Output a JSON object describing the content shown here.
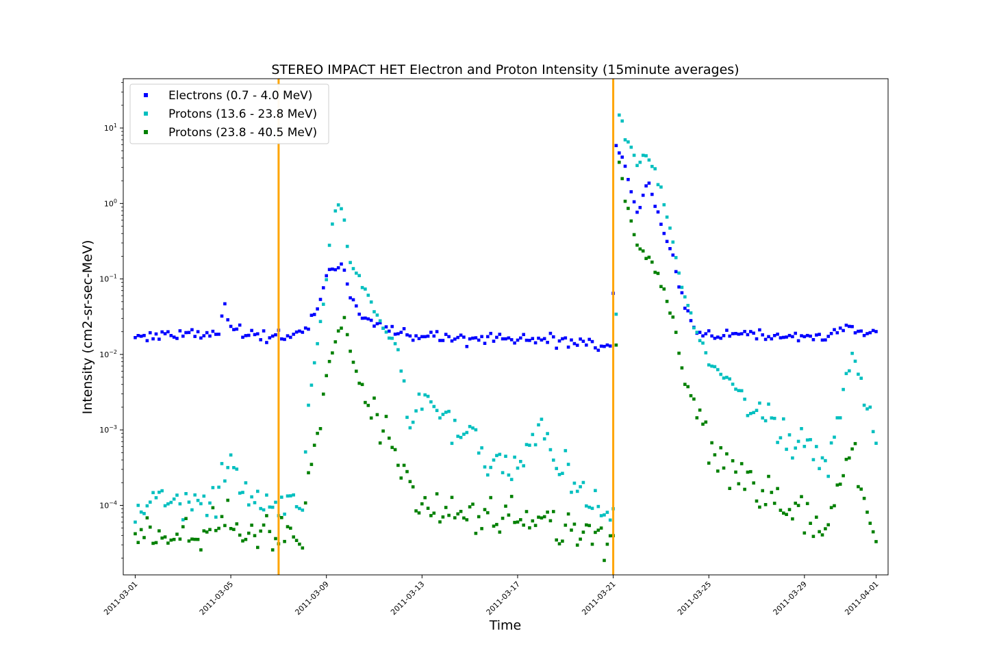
{
  "chart_data": {
    "type": "scatter",
    "title": "STEREO IMPACT HET Electron and Proton Intensity (15minute averages)",
    "xlabel": "Time",
    "ylabel": "Intensity (cm2-sr-sec-MeV)",
    "xlim": [
      "2011-02-28T12:00",
      "2011-04-01T12:00"
    ],
    "ylim": [
      1.2e-05,
      45
    ],
    "yscale": "log",
    "x_ticks": [
      "2011-03-01",
      "2011-03-05",
      "2011-03-09",
      "2011-03-13",
      "2011-03-17",
      "2011-03-21",
      "2011-03-25",
      "2011-03-29",
      "2011-04-01"
    ],
    "y_ticks": [
      {
        "value": 0.0001,
        "base": "10",
        "exp": "−4"
      },
      {
        "value": 0.001,
        "base": "10",
        "exp": "−3"
      },
      {
        "value": 0.01,
        "base": "10",
        "exp": "−2"
      },
      {
        "value": 0.1,
        "base": "10",
        "exp": "−1"
      },
      {
        "value": 1,
        "base": "10",
        "exp": "0"
      },
      {
        "value": 10,
        "base": "10",
        "exp": "1"
      }
    ],
    "vlines": [
      {
        "x": "2011-03-07T00:00",
        "color": "#ffa500"
      },
      {
        "x": "2011-03-21T00:00",
        "color": "#ffa500"
      }
    ],
    "legend_position": "upper-left",
    "series": [
      {
        "name": "Electrons (0.7 - 4.0 MeV)",
        "color": "#0000ff",
        "points": [
          [
            "2011-03-01T00:00",
            0.018
          ],
          [
            "2011-03-02T00:00",
            0.018
          ],
          [
            "2011-03-03T00:00",
            0.018
          ],
          [
            "2011-03-04T00:00",
            0.018
          ],
          [
            "2011-03-04T12:00",
            0.018
          ],
          [
            "2011-03-04T18:00",
            0.045
          ],
          [
            "2011-03-05T00:00",
            0.022
          ],
          [
            "2011-03-06T00:00",
            0.019
          ],
          [
            "2011-03-07T00:00",
            0.019
          ],
          [
            "2011-03-08T00:00",
            0.02
          ],
          [
            "2011-03-08T06:00",
            0.025
          ],
          [
            "2011-03-08T18:00",
            0.05
          ],
          [
            "2011-03-09T00:00",
            0.1
          ],
          [
            "2011-03-09T12:00",
            0.15
          ],
          [
            "2011-03-09T18:00",
            0.15
          ],
          [
            "2011-03-10T00:00",
            0.06
          ],
          [
            "2011-03-10T12:00",
            0.03
          ],
          [
            "2011-03-11T00:00",
            0.025
          ],
          [
            "2011-03-11T12:00",
            0.022
          ],
          [
            "2011-03-12T00:00",
            0.02
          ],
          [
            "2011-03-13T00:00",
            0.017
          ],
          [
            "2011-03-15T00:00",
            0.016
          ],
          [
            "2011-03-17T00:00",
            0.016
          ],
          [
            "2011-03-19T00:00",
            0.015
          ],
          [
            "2011-03-20T00:00",
            0.014
          ],
          [
            "2011-03-20T23:00",
            0.013
          ],
          [
            "2011-03-21T03:00",
            5.0
          ],
          [
            "2011-03-21T12:00",
            3.0
          ],
          [
            "2011-03-22T00:00",
            0.7
          ],
          [
            "2011-03-22T12:00",
            2.0
          ],
          [
            "2011-03-23T00:00",
            0.5
          ],
          [
            "2011-03-23T12:00",
            0.2
          ],
          [
            "2011-03-24T00:00",
            0.04
          ],
          [
            "2011-03-24T12:00",
            0.02
          ],
          [
            "2011-03-25T00:00",
            0.018
          ],
          [
            "2011-03-27T00:00",
            0.018
          ],
          [
            "2011-03-29T00:00",
            0.017
          ],
          [
            "2011-03-30T00:00",
            0.017
          ],
          [
            "2011-03-30T12:00",
            0.022
          ],
          [
            "2011-03-31T00:00",
            0.022
          ],
          [
            "2011-04-01T00:00",
            0.019
          ]
        ]
      },
      {
        "name": "Protons (13.6 - 23.8 MeV)",
        "color": "#00bfbf",
        "points": [
          [
            "2011-03-01T00:00",
            0.0001
          ],
          [
            "2011-03-02T00:00",
            0.0001
          ],
          [
            "2011-03-03T00:00",
            0.0001
          ],
          [
            "2011-03-04T00:00",
            0.0001
          ],
          [
            "2011-03-04T18:00",
            0.0003
          ],
          [
            "2011-03-05T00:00",
            0.0003
          ],
          [
            "2011-03-06T00:00",
            0.00012
          ],
          [
            "2011-03-07T00:00",
            0.0001
          ],
          [
            "2011-03-08T00:00",
            0.0001
          ],
          [
            "2011-03-08T06:00",
            0.002
          ],
          [
            "2011-03-08T18:00",
            0.03
          ],
          [
            "2011-03-09T00:00",
            0.1
          ],
          [
            "2011-03-09T06:00",
            0.6
          ],
          [
            "2011-03-09T12:00",
            1.0
          ],
          [
            "2011-03-09T18:00",
            0.6
          ],
          [
            "2011-03-10T00:00",
            0.2
          ],
          [
            "2011-03-10T12:00",
            0.08
          ],
          [
            "2011-03-11T00:00",
            0.04
          ],
          [
            "2011-03-11T12:00",
            0.02
          ],
          [
            "2011-03-12T00:00",
            0.012
          ],
          [
            "2011-03-12T06:00",
            0.004
          ],
          [
            "2011-03-12T12:00",
            0.001
          ],
          [
            "2011-03-13T00:00",
            0.0025
          ],
          [
            "2011-03-14T00:00",
            0.0015
          ],
          [
            "2011-03-15T00:00",
            0.0007
          ],
          [
            "2011-03-16T00:00",
            0.0004
          ],
          [
            "2011-03-17T00:00",
            0.0003
          ],
          [
            "2011-03-17T12:00",
            0.0006
          ],
          [
            "2011-03-18T00:00",
            0.001
          ],
          [
            "2011-03-19T00:00",
            0.0003
          ],
          [
            "2011-03-20T00:00",
            0.0001
          ],
          [
            "2011-03-21T00:00",
            8e-05
          ],
          [
            "2011-03-21T06:00",
            15.0
          ],
          [
            "2011-03-21T12:00",
            8.0
          ],
          [
            "2011-03-22T00:00",
            3.5
          ],
          [
            "2011-03-22T12:00",
            4.0
          ],
          [
            "2011-03-23T00:00",
            1.5
          ],
          [
            "2011-03-23T12:00",
            0.3
          ],
          [
            "2011-03-24T00:00",
            0.05
          ],
          [
            "2011-03-24T12:00",
            0.02
          ],
          [
            "2011-03-25T00:00",
            0.008
          ],
          [
            "2011-03-26T00:00",
            0.004
          ],
          [
            "2011-03-27T00:00",
            0.002
          ],
          [
            "2011-03-28T00:00",
            0.001
          ],
          [
            "2011-03-29T00:00",
            0.0006
          ],
          [
            "2011-03-30T00:00",
            0.0004
          ],
          [
            "2011-03-30T12:00",
            0.002
          ],
          [
            "2011-03-31T00:00",
            0.01
          ],
          [
            "2011-03-31T12:00",
            0.003
          ],
          [
            "2011-04-01T00:00",
            0.0006
          ]
        ]
      },
      {
        "name": "Protons (23.8 - 40.5 MeV)",
        "color": "#008000",
        "points": [
          [
            "2011-03-01T00:00",
            4e-05
          ],
          [
            "2011-03-02T00:00",
            4e-05
          ],
          [
            "2011-03-03T00:00",
            4e-05
          ],
          [
            "2011-03-04T00:00",
            4e-05
          ],
          [
            "2011-03-05T00:00",
            6e-05
          ],
          [
            "2011-03-06T00:00",
            4e-05
          ],
          [
            "2011-03-07T00:00",
            4e-05
          ],
          [
            "2011-03-08T00:00",
            4e-05
          ],
          [
            "2011-03-08T06:00",
            0.0003
          ],
          [
            "2011-03-08T18:00",
            0.002
          ],
          [
            "2011-03-09T00:00",
            0.005
          ],
          [
            "2011-03-09T12:00",
            0.02
          ],
          [
            "2011-03-09T18:00",
            0.03
          ],
          [
            "2011-03-10T00:00",
            0.01
          ],
          [
            "2011-03-10T12:00",
            0.003
          ],
          [
            "2011-03-11T00:00",
            0.0015
          ],
          [
            "2011-03-11T12:00",
            0.0008
          ],
          [
            "2011-03-12T00:00",
            0.0004
          ],
          [
            "2011-03-12T06:00",
            0.0002
          ],
          [
            "2011-03-13T00:00",
            0.0001
          ],
          [
            "2011-03-15T00:00",
            8e-05
          ],
          [
            "2011-03-17T00:00",
            6e-05
          ],
          [
            "2011-03-19T00:00",
            5e-05
          ],
          [
            "2011-03-20T00:00",
            4e-05
          ],
          [
            "2011-03-21T00:00",
            4e-05
          ],
          [
            "2011-03-21T06:00",
            4.0
          ],
          [
            "2011-03-21T12:00",
            1.0
          ],
          [
            "2011-03-22T00:00",
            0.3
          ],
          [
            "2011-03-22T12:00",
            0.2
          ],
          [
            "2011-03-23T00:00",
            0.1
          ],
          [
            "2011-03-23T12:00",
            0.03
          ],
          [
            "2011-03-24T00:00",
            0.004
          ],
          [
            "2011-03-24T12:00",
            0.002
          ],
          [
            "2011-03-25T00:00",
            0.0006
          ],
          [
            "2011-03-26T00:00",
            0.0003
          ],
          [
            "2011-03-27T00:00",
            0.00015
          ],
          [
            "2011-03-28T00:00",
            0.0001
          ],
          [
            "2011-03-29T00:00",
            7e-05
          ],
          [
            "2011-03-30T00:00",
            5e-05
          ],
          [
            "2011-03-30T12:00",
            0.0002
          ],
          [
            "2011-03-31T00:00",
            0.0006
          ],
          [
            "2011-03-31T12:00",
            0.0001
          ],
          [
            "2011-04-01T00:00",
            4e-05
          ]
        ]
      }
    ]
  }
}
